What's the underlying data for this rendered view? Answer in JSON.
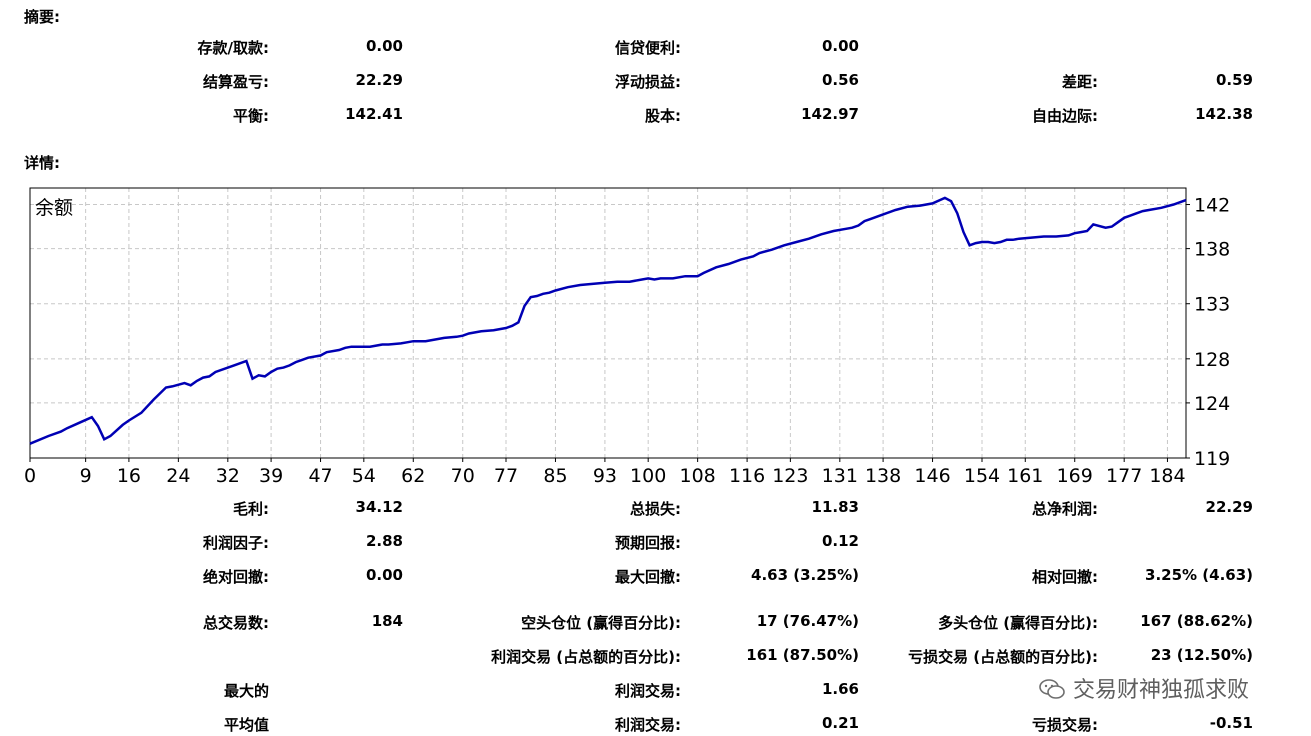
{
  "summary": {
    "title": "摘要:",
    "deposit_label": "存款/取款:",
    "deposit_value": "0.00",
    "credit_label": "信贷便利:",
    "credit_value": "0.00",
    "closed_pl_label": "结算盈亏:",
    "closed_pl_value": "22.29",
    "floating_pl_label": "浮动损益:",
    "floating_pl_value": "0.56",
    "margin_label": "差距:",
    "margin_value": "0.59",
    "balance_label": "平衡:",
    "balance_value": "142.41",
    "equity_label": "股本:",
    "equity_value": "142.97",
    "free_margin_label": "自由边际:",
    "free_margin_value": "142.38"
  },
  "details": {
    "title": "详情:",
    "gross_profit_label": "毛利:",
    "gross_profit_value": "34.12",
    "gross_loss_label": "总损失:",
    "gross_loss_value": "11.83",
    "net_profit_label": "总净利润:",
    "net_profit_value": "22.29",
    "profit_factor_label": "利润因子:",
    "profit_factor_value": "2.88",
    "expected_payoff_label": "预期回报:",
    "expected_payoff_value": "0.12",
    "abs_drawdown_label": "绝对回撤:",
    "abs_drawdown_value": "0.00",
    "max_drawdown_label": "最大回撤:",
    "max_drawdown_value": "4.63 (3.25%)",
    "rel_drawdown_label": "相对回撤:",
    "rel_drawdown_value": "3.25% (4.63)",
    "total_trades_label": "总交易数:",
    "total_trades_value": "184",
    "short_label": "空头仓位 (赢得百分比):",
    "short_value": "17 (76.47%)",
    "long_label": "多头仓位 (赢得百分比):",
    "long_value": "167 (88.62%)",
    "profit_trades_label": "利润交易 (占总额的百分比):",
    "profit_trades_value": "161 (87.50%)",
    "loss_trades_label": "亏损交易 (占总额的百分比):",
    "loss_trades_value": "23 (12.50%)",
    "largest_label": "最大的",
    "largest_profit_label": "利润交易:",
    "largest_profit_value": "1.66",
    "average_label": "平均值",
    "avg_profit_label": "利润交易:",
    "avg_profit_value": "0.21",
    "avg_loss_label": "亏损交易:",
    "avg_loss_value": "-0.51"
  },
  "watermark": "交易财神独孤求败",
  "colors": {
    "line": "#0000b4",
    "grid": "#c8c8c8"
  },
  "chart_data": {
    "type": "line",
    "title": "余额",
    "xlabel": "",
    "ylabel": "",
    "xlim": [
      0,
      187
    ],
    "ylim": [
      119,
      143.5
    ],
    "x_ticks": [
      "0",
      "9",
      "16",
      "24",
      "32",
      "39",
      "47",
      "54",
      "62",
      "70",
      "77",
      "85",
      "93",
      "100",
      "108",
      "116",
      "123",
      "131",
      "138",
      "146",
      "154",
      "161",
      "169",
      "177",
      "184"
    ],
    "y_ticks": [
      "119",
      "124",
      "128",
      "133",
      "138",
      "142"
    ],
    "grid": true,
    "series": [
      {
        "x": [
          0,
          3,
          5,
          6,
          8,
          10,
          11,
          12,
          13,
          15,
          16,
          18,
          20,
          22,
          23,
          25,
          26,
          27,
          28,
          29,
          30,
          33,
          35,
          36,
          37,
          38,
          39,
          40,
          41,
          42,
          43,
          44,
          45,
          47,
          48,
          50,
          51,
          52,
          54,
          55,
          57,
          58,
          60,
          61,
          62,
          63,
          64,
          66,
          67,
          69,
          70,
          71,
          73,
          75,
          77,
          78,
          79,
          80,
          81,
          82,
          83,
          84,
          85,
          87,
          89,
          91,
          93,
          95,
          97,
          99,
          100,
          101,
          102,
          104,
          106,
          108,
          109,
          111,
          113,
          115,
          117,
          118,
          120,
          122,
          124,
          126,
          128,
          130,
          132,
          133,
          134,
          135,
          136,
          138,
          140,
          142,
          144,
          146,
          148,
          149,
          150,
          151,
          152,
          153,
          154,
          155,
          156,
          157,
          158,
          159,
          160,
          162,
          164,
          166,
          168,
          169,
          170,
          171,
          172,
          174,
          175,
          176,
          177,
          178,
          179,
          180,
          181,
          183,
          185,
          187
        ],
        "y": [
          120.3,
          121.0,
          121.4,
          121.7,
          122.2,
          122.7,
          121.9,
          120.7,
          121.0,
          122.0,
          122.4,
          123.1,
          124.3,
          125.4,
          125.5,
          125.8,
          125.6,
          126.0,
          126.3,
          126.4,
          126.8,
          127.4,
          127.8,
          126.2,
          126.5,
          126.4,
          126.8,
          127.1,
          127.2,
          127.4,
          127.7,
          127.9,
          128.1,
          128.3,
          128.6,
          128.8,
          129.0,
          129.1,
          129.1,
          129.1,
          129.3,
          129.3,
          129.4,
          129.5,
          129.6,
          129.6,
          129.6,
          129.8,
          129.9,
          130.0,
          130.1,
          130.3,
          130.5,
          130.6,
          130.8,
          131.0,
          131.3,
          132.8,
          133.6,
          133.7,
          133.9,
          134.0,
          134.2,
          134.5,
          134.7,
          134.8,
          134.9,
          135.0,
          135.0,
          135.2,
          135.3,
          135.2,
          135.3,
          135.3,
          135.5,
          135.5,
          135.8,
          136.3,
          136.6,
          137.0,
          137.3,
          137.6,
          137.9,
          138.3,
          138.6,
          138.9,
          139.3,
          139.6,
          139.8,
          139.9,
          140.1,
          140.5,
          140.7,
          141.1,
          141.5,
          141.8,
          141.9,
          142.1,
          142.6,
          142.3,
          141.2,
          139.5,
          138.3,
          138.5,
          138.6,
          138.6,
          138.5,
          138.6,
          138.8,
          138.8,
          138.9,
          139.0,
          139.1,
          139.1,
          139.2,
          139.4,
          139.5,
          139.6,
          140.2,
          139.9,
          140.0,
          140.4,
          140.8,
          141.0,
          141.2,
          141.4,
          141.5,
          141.7,
          142.0,
          142.4
        ]
      }
    ]
  }
}
